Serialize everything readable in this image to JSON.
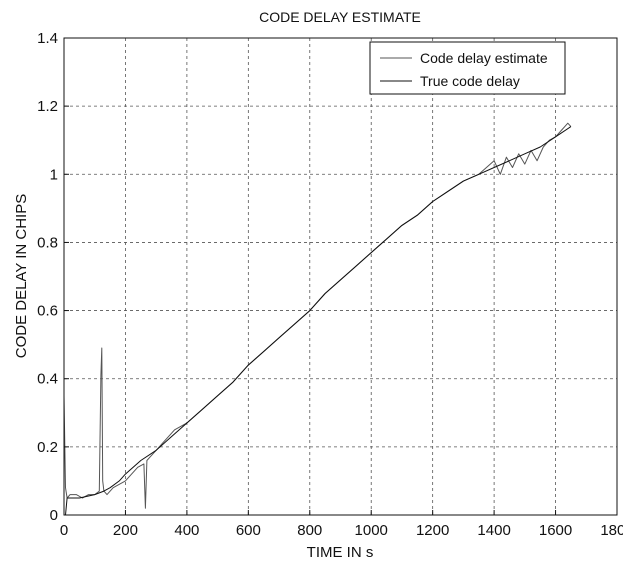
{
  "chart_data": {
    "type": "line",
    "title": "CODE DELAY ESTIMATE",
    "xlabel": "TIME IN s",
    "ylabel": "CODE DELAY IN CHIPS",
    "xlim": [
      0,
      1800
    ],
    "ylim": [
      0,
      1.4
    ],
    "x_ticks": [
      "0",
      "200",
      "400",
      "600",
      "800",
      "1000",
      "1200",
      "1400",
      "1600",
      "1800"
    ],
    "y_ticks": [
      "0",
      "0.2",
      "0.4",
      "0.6",
      "0.8",
      "1",
      "1.2",
      "1.4"
    ],
    "grid": true,
    "legend_position": "top-right",
    "series": [
      {
        "name": "Code delay estimate",
        "color": "#555555",
        "x": [
          0,
          5,
          10,
          20,
          40,
          60,
          80,
          100,
          115,
          120,
          123,
          126,
          130,
          140,
          160,
          180,
          200,
          220,
          240,
          260,
          265,
          270,
          280,
          300,
          320,
          340,
          360,
          380,
          400,
          450,
          500,
          550,
          600,
          650,
          700,
          750,
          800,
          850,
          900,
          950,
          1000,
          1050,
          1100,
          1150,
          1200,
          1250,
          1300,
          1350,
          1400,
          1420,
          1440,
          1460,
          1480,
          1500,
          1520,
          1540,
          1560,
          1580,
          1600,
          1620,
          1640,
          1650
        ],
        "y": [
          0.35,
          0.08,
          0.05,
          0.06,
          0.06,
          0.05,
          0.06,
          0.06,
          0.07,
          0.41,
          0.49,
          0.1,
          0.07,
          0.06,
          0.08,
          0.09,
          0.1,
          0.12,
          0.14,
          0.15,
          0.02,
          0.16,
          0.17,
          0.19,
          0.21,
          0.23,
          0.25,
          0.26,
          0.27,
          0.31,
          0.35,
          0.39,
          0.44,
          0.48,
          0.52,
          0.56,
          0.6,
          0.65,
          0.69,
          0.73,
          0.77,
          0.81,
          0.85,
          0.88,
          0.92,
          0.95,
          0.98,
          1.0,
          1.04,
          1.0,
          1.05,
          1.02,
          1.06,
          1.03,
          1.07,
          1.04,
          1.08,
          1.1,
          1.11,
          1.13,
          1.15,
          1.14
        ]
      },
      {
        "name": "True code delay",
        "color": "#111111",
        "x": [
          0,
          5,
          10,
          50,
          100,
          130,
          150,
          180,
          200,
          250,
          300,
          350,
          400,
          450,
          500,
          550,
          600,
          650,
          700,
          750,
          800,
          850,
          900,
          950,
          1000,
          1050,
          1100,
          1150,
          1200,
          1250,
          1300,
          1350,
          1400,
          1450,
          1500,
          1550,
          1600,
          1650
        ],
        "y": [
          0.0,
          0.0,
          0.05,
          0.05,
          0.06,
          0.07,
          0.08,
          0.1,
          0.12,
          0.16,
          0.19,
          0.23,
          0.27,
          0.31,
          0.35,
          0.39,
          0.44,
          0.48,
          0.52,
          0.56,
          0.6,
          0.65,
          0.69,
          0.73,
          0.77,
          0.81,
          0.85,
          0.88,
          0.92,
          0.95,
          0.98,
          1.0,
          1.02,
          1.04,
          1.06,
          1.08,
          1.11,
          1.14
        ]
      }
    ]
  }
}
